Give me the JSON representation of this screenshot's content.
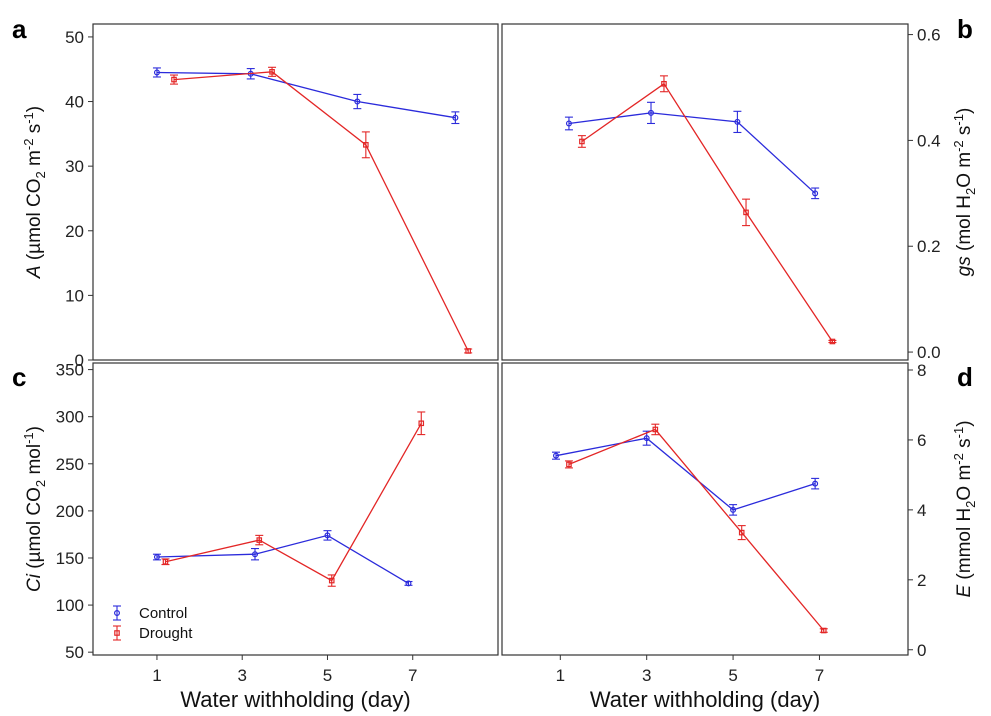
{
  "colors": {
    "Control": "#2b2bdb",
    "Drought": "#e32626"
  },
  "legend": {
    "items": [
      "Control",
      "Drought"
    ],
    "placement": "bottom-left of panel c"
  },
  "chart_data": [
    {
      "panel": "a",
      "type": "line",
      "xlabel": "",
      "ylabel": {
        "italic": "A",
        "rest": "  (µmol CO",
        "sub": "2",
        "mid": " m",
        "sup1": "-2",
        "end": " s",
        "sup2": "-1",
        "close": ")"
      },
      "ylim": [
        0,
        52
      ],
      "yticks": [
        0,
        10,
        20,
        30,
        40,
        50
      ],
      "xticks": [],
      "y_axis_side": "left",
      "series": [
        {
          "name": "Control",
          "x": [
            1,
            3.2,
            5.7,
            8
          ],
          "y": [
            44.5,
            44.3,
            40,
            37.5
          ],
          "err": [
            0.7,
            0.8,
            1.1,
            0.9
          ]
        },
        {
          "name": "Drought",
          "x": [
            1.4,
            3.7,
            5.9,
            8.3
          ],
          "y": [
            43.4,
            44.6,
            33.3,
            1.4
          ],
          "err": [
            0.7,
            0.7,
            2.0,
            0.3
          ]
        }
      ]
    },
    {
      "panel": "b",
      "type": "line",
      "xlabel": "",
      "ylabel": {
        "italic": "gs",
        "rest": " (mol H",
        "sub": "2",
        "mid": "O m",
        "sup1": "-2",
        "end": " s",
        "sup2": "-1",
        "close": ")"
      },
      "ylim": [
        -0.015,
        0.62
      ],
      "yticks": [
        "0.0",
        "0.2",
        "0.4",
        "0.6"
      ],
      "xticks": [],
      "y_axis_side": "right",
      "series": [
        {
          "name": "Control",
          "x": [
            1.2,
            3.1,
            5.1,
            6.9
          ],
          "y": [
            0.432,
            0.452,
            0.435,
            0.3
          ],
          "err": [
            0.012,
            0.02,
            0.02,
            0.01
          ]
        },
        {
          "name": "Drought",
          "x": [
            1.5,
            3.4,
            5.3,
            7.3
          ],
          "y": [
            0.398,
            0.507,
            0.264,
            0.02
          ],
          "err": [
            0.011,
            0.015,
            0.025,
            0.002
          ]
        }
      ]
    },
    {
      "panel": "c",
      "type": "line",
      "xlabel": "Water withholding (day)",
      "ylabel": {
        "italic": "Ci",
        "rest": " (µmol CO",
        "sub": "2",
        "mid": " mol",
        "sup1": "-1",
        "end": "",
        "sup2": "",
        "close": ")"
      },
      "ylim": [
        47,
        357
      ],
      "yticks": [
        50,
        100,
        150,
        200,
        250,
        300,
        350
      ],
      "xticks": [
        "1",
        "3",
        "5",
        "7"
      ],
      "y_axis_side": "left",
      "series": [
        {
          "name": "Control",
          "x": [
            1,
            3.3,
            5,
            6.9
          ],
          "y": [
            151,
            154,
            174,
            123
          ],
          "err": [
            3,
            6,
            5,
            2
          ]
        },
        {
          "name": "Drought",
          "x": [
            1.2,
            3.4,
            5.1,
            7.2
          ],
          "y": [
            146,
            169,
            126,
            293
          ],
          "err": [
            3,
            5,
            6,
            12
          ]
        }
      ]
    },
    {
      "panel": "d",
      "type": "line",
      "xlabel": "Water withholding (day)",
      "ylabel": {
        "italic": "E",
        "rest": " (mmol H",
        "sub": "2",
        "mid": "O m",
        "sup1": "-2",
        "end": " s",
        "sup2": "-1",
        "close": ")"
      },
      "ylim": [
        -0.15,
        8.2
      ],
      "yticks": [
        0,
        2,
        4,
        6,
        8
      ],
      "xticks": [
        "1",
        "3",
        "5",
        "7"
      ],
      "y_axis_side": "right",
      "series": [
        {
          "name": "Control",
          "x": [
            0.9,
            3,
            5,
            6.9
          ],
          "y": [
            5.55,
            6.05,
            4.0,
            4.75
          ],
          "err": [
            0.1,
            0.2,
            0.15,
            0.15
          ]
        },
        {
          "name": "Drought",
          "x": [
            1.2,
            3.2,
            5.2,
            7.1
          ],
          "y": [
            5.3,
            6.3,
            3.35,
            0.55
          ],
          "err": [
            0.1,
            0.15,
            0.2,
            0.05
          ]
        }
      ]
    }
  ]
}
